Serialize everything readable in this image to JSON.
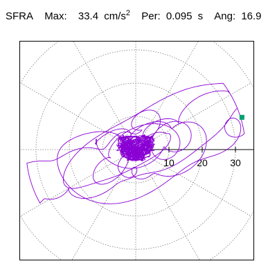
{
  "header": {
    "component": "SFRA",
    "max_label": "Max:",
    "max_value": "33.4",
    "max_unit": "cm/s",
    "max_unit_exp": "2",
    "per_label": "Per:",
    "per_value": "0.095",
    "per_unit": "s",
    "ang_label": "Ang:",
    "ang_value": "16.9"
  },
  "colors": {
    "trace": "#8a00d4",
    "marker": "#00a070",
    "grid": "#7a7a7a",
    "axis": "#000000",
    "background": "#ffffff"
  },
  "plot": {
    "type": "polar-orbit",
    "radial_ticks": [
      "10",
      "20",
      "30"
    ],
    "radial_tick_values": [
      10,
      20,
      30
    ],
    "ring_values": [
      10,
      20,
      30
    ],
    "spoke_count": 12,
    "max_radius_value": 40,
    "peak_amplitude": 33.4,
    "peak_angle_deg": 16.9
  }
}
